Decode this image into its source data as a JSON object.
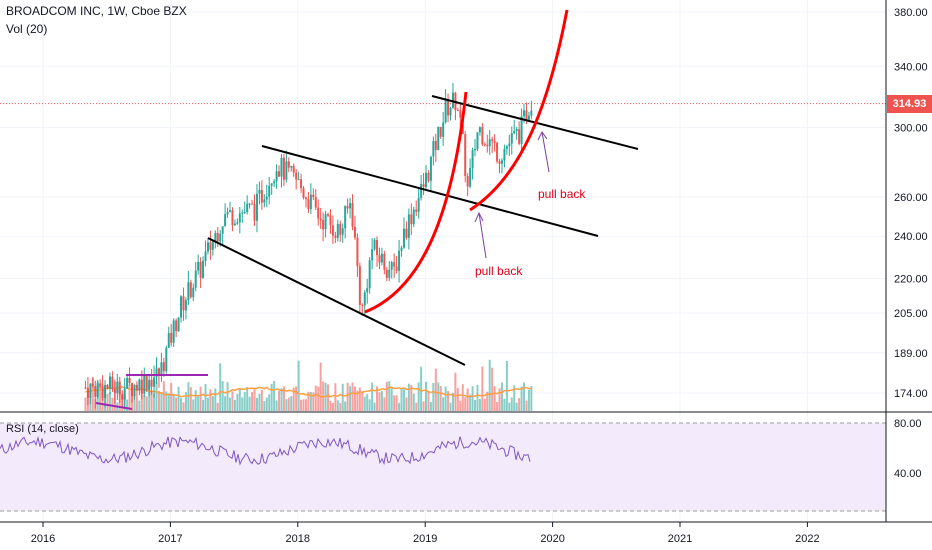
{
  "header": {
    "symbol_line": "BROADCOM INC, 1W, Cboe BZX",
    "volume_label": "Vol (20)"
  },
  "rsi": {
    "label": "RSI (14, close)",
    "ticks": [
      "80.00",
      "40.00"
    ]
  },
  "price_tag": "314.93",
  "annotations": [
    "pull back",
    "pull back"
  ],
  "colors": {
    "up": "#26a69a",
    "down": "#ef5350",
    "trendline": "#000000",
    "curve": "#ff0000",
    "arrow": "#7b3fa0",
    "rsi_line": "#7e57c2",
    "rsi_band": "#f3eafc",
    "volume_ma": "#ff9f43",
    "last_price": "#ef5350"
  },
  "chart_data": {
    "type": "candlestick",
    "interval": "1W",
    "ylim": [
      160,
      388
    ],
    "y_ticks": [
      "380.00",
      "340.00",
      "300.00",
      "260.00",
      "240.00",
      "220.00",
      "205.00",
      "189.00",
      "174.00"
    ],
    "x_ticks": [
      "2016",
      "2017",
      "2018",
      "2019",
      "2020",
      "2021",
      "2022"
    ],
    "last_price": 314.93,
    "price_path": [
      [
        "2016-05",
        176
      ],
      [
        "2016-09",
        176
      ],
      [
        "2016-12",
        181
      ],
      [
        "2017-02",
        208
      ],
      [
        "2017-04",
        226
      ],
      [
        "2017-06",
        250
      ],
      [
        "2017-09",
        254
      ],
      [
        "2017-11",
        278
      ],
      [
        "2018-01",
        268
      ],
      [
        "2018-03",
        250
      ],
      [
        "2018-05",
        242
      ],
      [
        "2018-06",
        258
      ],
      [
        "2018-07",
        204
      ],
      [
        "2018-08",
        234
      ],
      [
        "2018-10",
        222
      ],
      [
        "2018-11",
        242
      ],
      [
        "2019-01",
        268
      ],
      [
        "2019-03",
        312
      ],
      [
        "2019-04",
        318
      ],
      [
        "2019-05",
        264
      ],
      [
        "2019-06",
        300
      ],
      [
        "2019-08",
        284
      ],
      [
        "2019-10",
        298
      ],
      [
        "2019-11",
        318
      ]
    ],
    "rsi_range": [
      20,
      90
    ]
  }
}
